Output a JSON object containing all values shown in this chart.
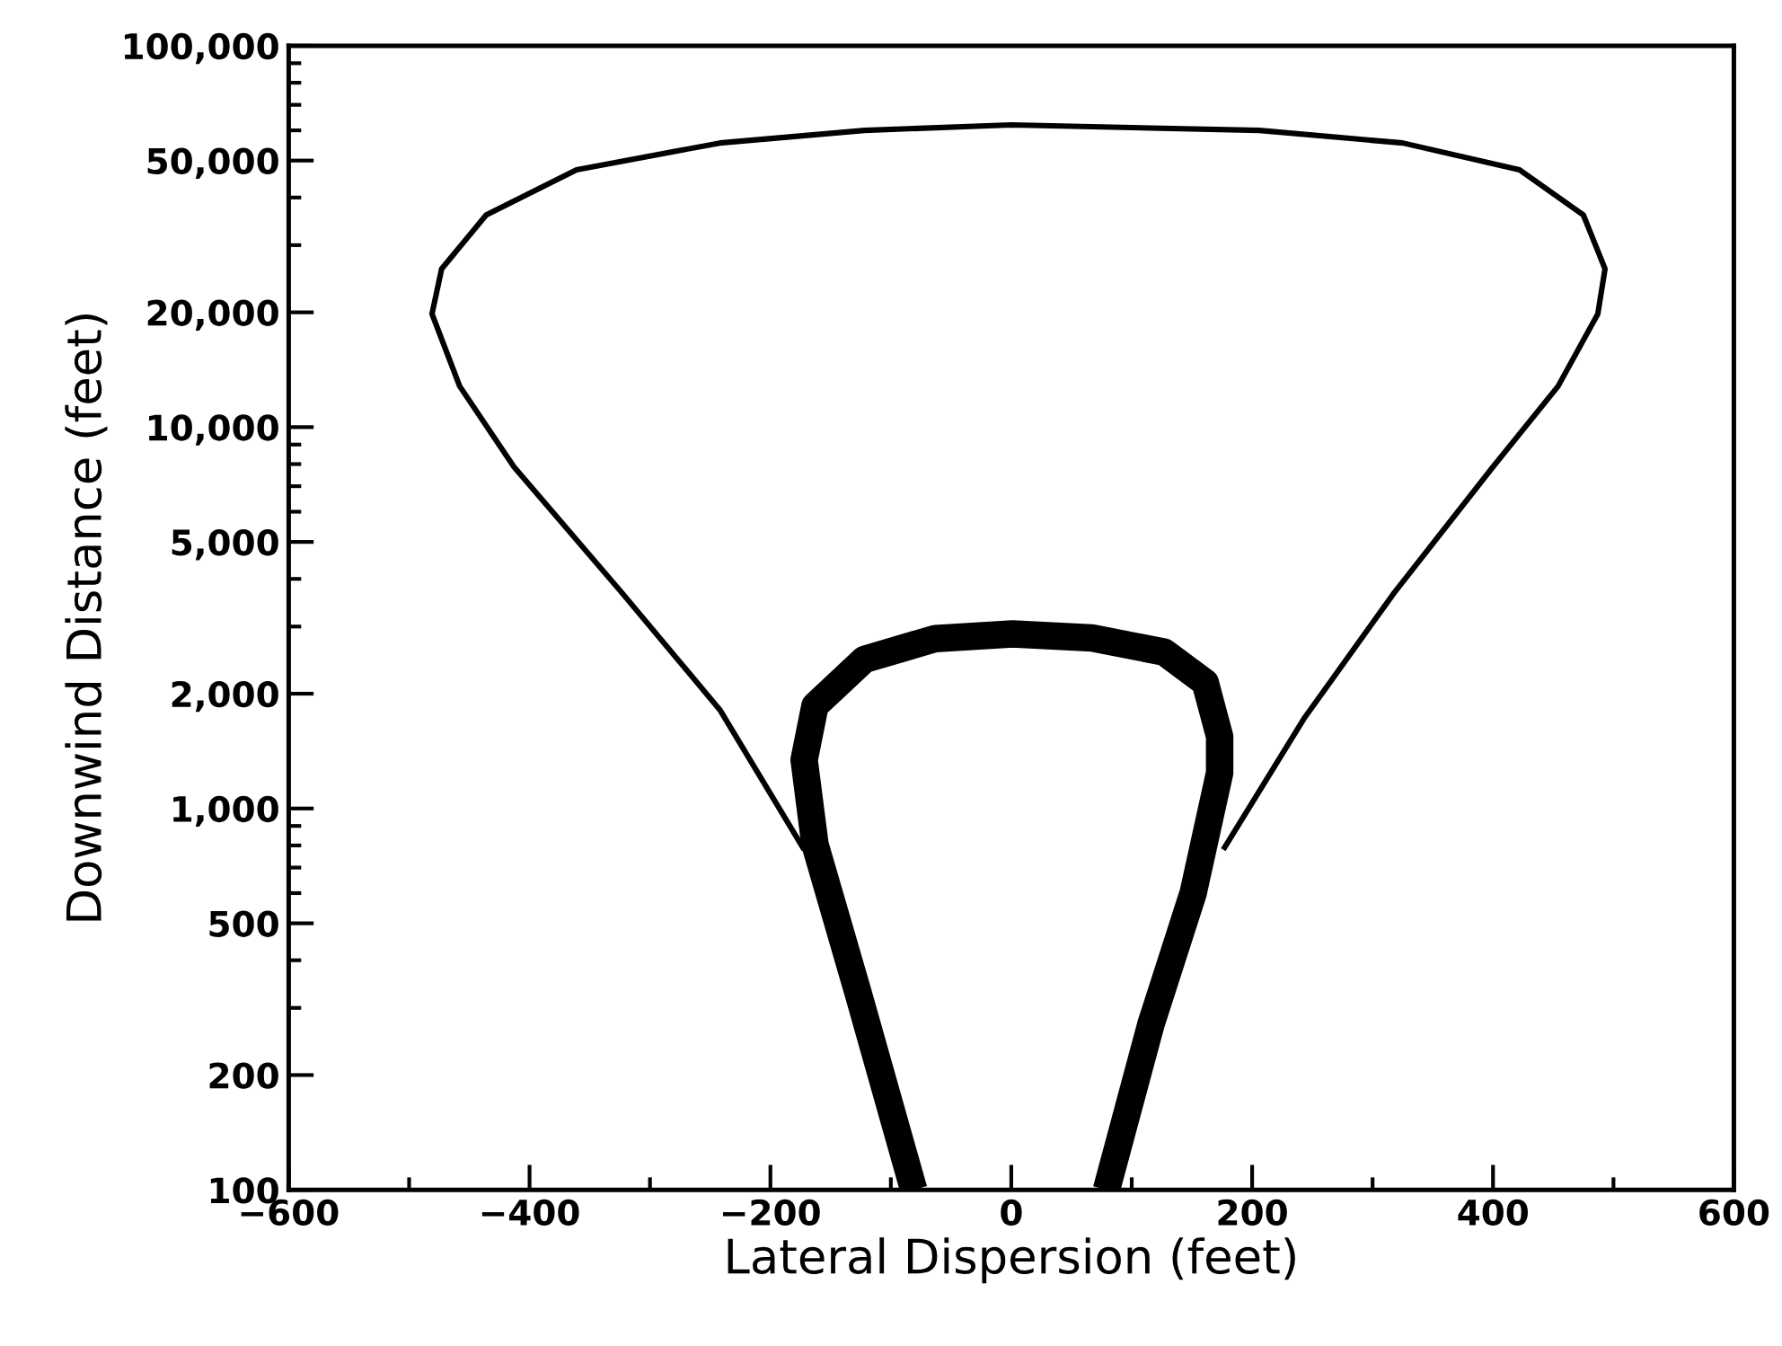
{
  "chart_data": {
    "type": "line",
    "xlabel": "Lateral Dispersion (feet)",
    "ylabel": "Downwind Distance (feet)",
    "log": "y",
    "grid": false,
    "legend": false,
    "marker": "none",
    "line_style": "solid",
    "xlim": [
      -600,
      600
    ],
    "xticks": [
      {
        "value": -600,
        "label": "−600"
      },
      {
        "value": -400,
        "label": "−400"
      },
      {
        "value": -200,
        "label": "−200"
      },
      0,
      200,
      400,
      600
    ],
    "ylim": [
      100,
      100000
    ],
    "yticks": [
      100,
      200,
      500,
      {
        "value": 1000,
        "label": "1,000"
      },
      {
        "value": 2000,
        "label": "2,000"
      },
      {
        "value": 5000,
        "label": "5,000"
      },
      {
        "value": 10000,
        "label": "10,000"
      },
      {
        "value": 20000,
        "label": "20,000"
      },
      {
        "value": 50000,
        "label": "50,000"
      },
      {
        "value": 100000,
        "label": "100,000"
      }
    ],
    "series": [
      {
        "color": "#000000",
        "x": [
          -172,
          -242,
          -324,
          -413,
          -458,
          -481,
          -473,
          -436,
          -361,
          -242,
          -122,
          0,
          206,
          325,
          422,
          475,
          493,
          487,
          454,
          400,
          318,
          243,
          176
        ],
        "values": [
          780,
          1815,
          3700,
          7870,
          12800,
          19800,
          26000,
          36000,
          47300,
          55600,
          60000,
          62000,
          60000,
          55600,
          47300,
          36000,
          26000,
          19800,
          12800,
          7870,
          3680,
          1720,
          780
        ]
      },
      {
        "color": "#000000",
        "x": [
          -81,
          -127,
          -163,
          -172,
          -163,
          -122,
          -63,
          1,
          67,
          127,
          161,
          173,
          173,
          151,
          116,
          79
        ],
        "values": [
          100,
          327,
          805,
          1340,
          1860,
          2460,
          2790,
          2870,
          2800,
          2570,
          2140,
          1545,
          1240,
          600,
          272,
          100
        ]
      }
    ]
  }
}
